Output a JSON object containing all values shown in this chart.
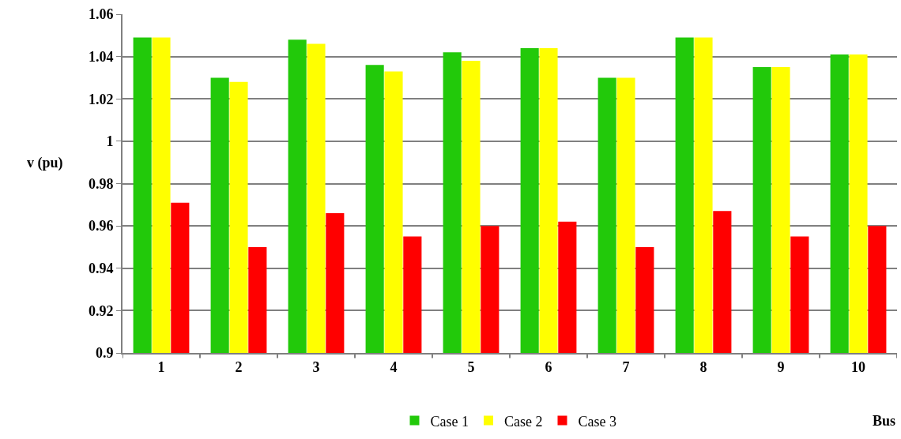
{
  "chart_data": {
    "type": "bar",
    "xlabel": "Bus",
    "ylabel": "v (pu)",
    "categories": [
      "1",
      "2",
      "3",
      "4",
      "5",
      "6",
      "7",
      "8",
      "9",
      "10"
    ],
    "series": [
      {
        "name": "Case 1",
        "color": "#22c90a",
        "values": [
          1.049,
          1.03,
          1.048,
          1.036,
          1.042,
          1.044,
          1.03,
          1.049,
          1.035,
          1.041
        ]
      },
      {
        "name": "Case 2",
        "color": "#ffff00",
        "values": [
          1.049,
          1.028,
          1.046,
          1.033,
          1.038,
          1.044,
          1.03,
          1.049,
          1.035,
          1.041
        ]
      },
      {
        "name": "Case 3",
        "color": "#ff0000",
        "values": [
          0.971,
          0.95,
          0.966,
          0.955,
          0.96,
          0.962,
          0.95,
          0.967,
          0.955,
          0.96
        ]
      }
    ],
    "ylim": [
      0.9,
      1.06
    ],
    "yticks": [
      0.9,
      0.92,
      0.94,
      0.96,
      0.98,
      1,
      1.02,
      1.04,
      1.06
    ],
    "grid": "y",
    "legend": "bottom"
  }
}
